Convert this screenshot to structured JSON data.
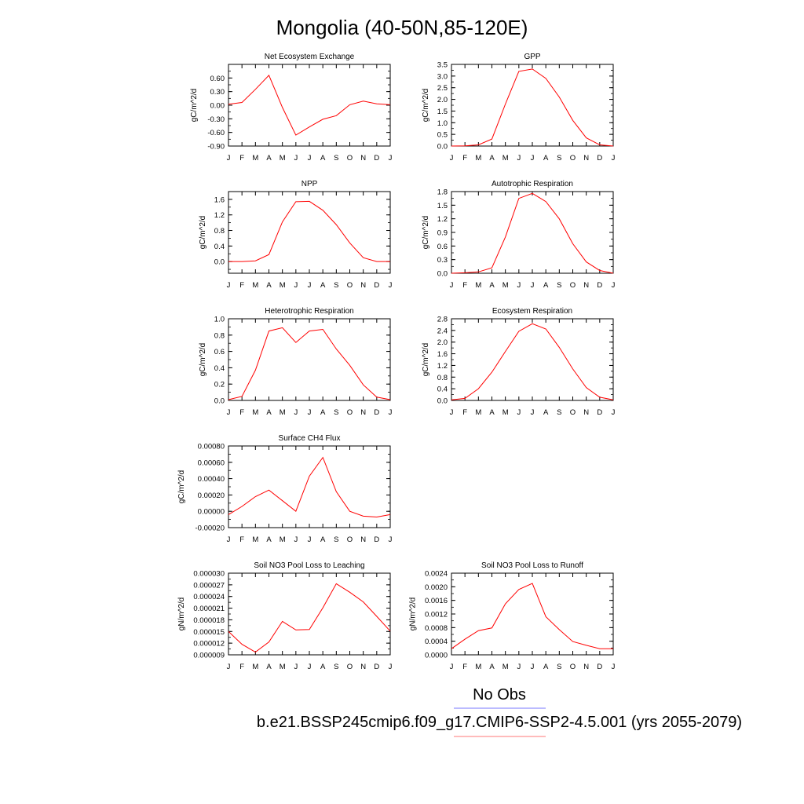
{
  "title": "Mongolia (40-50N,85-120E)",
  "legend": [
    {
      "label": "No Obs",
      "color": "#7777ff"
    },
    {
      "label": "b.e21.BSSP245cmip6.f09_g17.CMIP6-SSP2-4.5.001 (yrs 2055-2079)",
      "color": "#ff7777"
    }
  ],
  "line_color": "#ff0000",
  "chart_data": [
    {
      "type": "line",
      "title": "Net Ecosystem Exchange",
      "ylabel": "gC/m^2/d",
      "categories": [
        "J",
        "F",
        "M",
        "A",
        "M",
        "J",
        "J",
        "A",
        "S",
        "O",
        "N",
        "D",
        "J"
      ],
      "ylim": [
        -0.9,
        0.9
      ],
      "yticks": [
        "0.60",
        "0.30",
        "0.00",
        "-0.30",
        "-0.60",
        "-0.90"
      ],
      "ytick_values": [
        0.6,
        0.3,
        0.0,
        -0.3,
        -0.6,
        -0.9
      ],
      "values": [
        0.02,
        0.06,
        0.35,
        0.66,
        -0.05,
        -0.66,
        -0.48,
        -0.31,
        -0.23,
        0.01,
        0.09,
        0.03,
        0.01
      ]
    },
    {
      "type": "line",
      "title": "GPP",
      "ylabel": "gC/m^2/d",
      "categories": [
        "J",
        "F",
        "M",
        "A",
        "M",
        "J",
        "J",
        "A",
        "S",
        "O",
        "N",
        "D",
        "J"
      ],
      "ylim": [
        0,
        3.5
      ],
      "yticks": [
        "3.5",
        "3.0",
        "2.5",
        "2.0",
        "1.5",
        "1.0",
        "0.5",
        "0.0"
      ],
      "ytick_values": [
        3.5,
        3.0,
        2.5,
        2.0,
        1.5,
        1.0,
        0.5,
        0.0
      ],
      "values": [
        0.0,
        0.01,
        0.05,
        0.3,
        1.8,
        3.2,
        3.3,
        2.9,
        2.1,
        1.1,
        0.35,
        0.05,
        0.0
      ]
    },
    {
      "type": "line",
      "title": "NPP",
      "ylabel": "gC/m^2/d",
      "categories": [
        "J",
        "F",
        "M",
        "A",
        "M",
        "J",
        "J",
        "A",
        "S",
        "O",
        "N",
        "D",
        "J"
      ],
      "ylim": [
        -0.3,
        1.8
      ],
      "yticks": [
        "1.6",
        "1.2",
        "0.8",
        "0.4",
        "0.0"
      ],
      "ytick_values": [
        1.6,
        1.2,
        0.8,
        0.4,
        0.0
      ],
      "values": [
        0.0,
        0.0,
        0.02,
        0.18,
        1.02,
        1.54,
        1.55,
        1.32,
        0.95,
        0.48,
        0.1,
        0.0,
        0.0
      ]
    },
    {
      "type": "line",
      "title": "Autotrophic Respiration",
      "ylabel": "gC/m^2/d",
      "categories": [
        "J",
        "F",
        "M",
        "A",
        "M",
        "J",
        "J",
        "A",
        "S",
        "O",
        "N",
        "D",
        "J"
      ],
      "ylim": [
        0,
        1.8
      ],
      "yticks": [
        "1.8",
        "1.5",
        "1.2",
        "0.9",
        "0.6",
        "0.3",
        "0.0"
      ],
      "ytick_values": [
        1.8,
        1.5,
        1.2,
        0.9,
        0.6,
        0.3,
        0.0
      ],
      "values": [
        0.0,
        0.01,
        0.03,
        0.12,
        0.8,
        1.65,
        1.76,
        1.58,
        1.2,
        0.65,
        0.25,
        0.06,
        0.0
      ]
    },
    {
      "type": "line",
      "title": "Heterotrophic Respiration",
      "ylabel": "gC/m^2/d",
      "categories": [
        "J",
        "F",
        "M",
        "A",
        "M",
        "J",
        "J",
        "A",
        "S",
        "O",
        "N",
        "D",
        "J"
      ],
      "ylim": [
        0,
        1.0
      ],
      "yticks": [
        "1.0",
        "0.8",
        "0.6",
        "0.4",
        "0.2",
        "0.0"
      ],
      "ytick_values": [
        1.0,
        0.8,
        0.6,
        0.4,
        0.2,
        0.0
      ],
      "values": [
        0.01,
        0.05,
        0.37,
        0.85,
        0.89,
        0.71,
        0.85,
        0.87,
        0.63,
        0.43,
        0.19,
        0.04,
        0.01
      ]
    },
    {
      "type": "line",
      "title": "Ecosystem Respiration",
      "ylabel": "gC/m^2/d",
      "categories": [
        "J",
        "F",
        "M",
        "A",
        "M",
        "J",
        "J",
        "A",
        "S",
        "O",
        "N",
        "D",
        "J"
      ],
      "ylim": [
        0,
        2.8
      ],
      "yticks": [
        "2.8",
        "2.4",
        "2.0",
        "1.6",
        "1.2",
        "0.8",
        "0.4",
        "0.0"
      ],
      "ytick_values": [
        2.8,
        2.4,
        2.0,
        1.6,
        1.2,
        0.8,
        0.4,
        0.0
      ],
      "values": [
        0.02,
        0.07,
        0.4,
        0.97,
        1.68,
        2.37,
        2.63,
        2.45,
        1.82,
        1.08,
        0.44,
        0.11,
        0.02
      ]
    },
    {
      "type": "line",
      "title": "Surface CH4 Flux",
      "ylabel": "gC/m^2/d",
      "categories": [
        "J",
        "F",
        "M",
        "A",
        "M",
        "J",
        "J",
        "A",
        "S",
        "O",
        "N",
        "D",
        "J"
      ],
      "ylim": [
        -0.0002,
        0.0008
      ],
      "yticks": [
        "0.00080",
        "0.00060",
        "0.00040",
        "0.00020",
        "0.00000",
        "-0.00020"
      ],
      "ytick_values": [
        0.0008,
        0.0006,
        0.0004,
        0.0002,
        0.0,
        -0.0002
      ],
      "values": [
        -4e-05,
        6e-05,
        0.00018,
        0.00026,
        0.00013,
        0.0,
        0.00043,
        0.00066,
        0.00024,
        0.0,
        -6e-05,
        -7e-05,
        -4e-05
      ]
    },
    {
      "type": "line",
      "title": "Soil NO3 Pool Loss to Leaching",
      "ylabel": "gN/m^2/d",
      "categories": [
        "J",
        "F",
        "M",
        "A",
        "M",
        "J",
        "J",
        "A",
        "S",
        "O",
        "N",
        "D",
        "J"
      ],
      "ylim": [
        9e-06,
        3e-05
      ],
      "yticks": [
        "0.000030",
        "0.000027",
        "0.000024",
        "0.000021",
        "0.000018",
        "0.000015",
        "0.000012",
        "0.000009"
      ],
      "ytick_values": [
        3e-05,
        2.7e-05,
        2.4e-05,
        2.1e-05,
        1.8e-05,
        1.5e-05,
        1.2e-05,
        9e-06
      ],
      "values": [
        1.5e-05,
        1.17e-05,
        9.7e-06,
        1.23e-05,
        1.76e-05,
        1.54e-05,
        1.55e-05,
        2.11e-05,
        2.73e-05,
        2.51e-05,
        2.26e-05,
        1.89e-05,
        1.51e-05
      ]
    },
    {
      "type": "line",
      "title": "Soil NO3 Pool Loss to Runoff",
      "ylabel": "gN/m^2/d",
      "categories": [
        "J",
        "F",
        "M",
        "A",
        "M",
        "J",
        "J",
        "A",
        "S",
        "O",
        "N",
        "D",
        "J"
      ],
      "ylim": [
        0,
        0.0024
      ],
      "yticks": [
        "0.0024",
        "0.0020",
        "0.0016",
        "0.0012",
        "0.0008",
        "0.0004",
        "0.0000"
      ],
      "ytick_values": [
        0.0024,
        0.002,
        0.0016,
        0.0012,
        0.0008,
        0.0004,
        0.0
      ],
      "values": [
        0.00018,
        0.00046,
        0.00071,
        0.00079,
        0.0015,
        0.00192,
        0.0021,
        0.00112,
        0.00074,
        0.00039,
        0.00028,
        0.00018,
        0.00018
      ]
    }
  ]
}
